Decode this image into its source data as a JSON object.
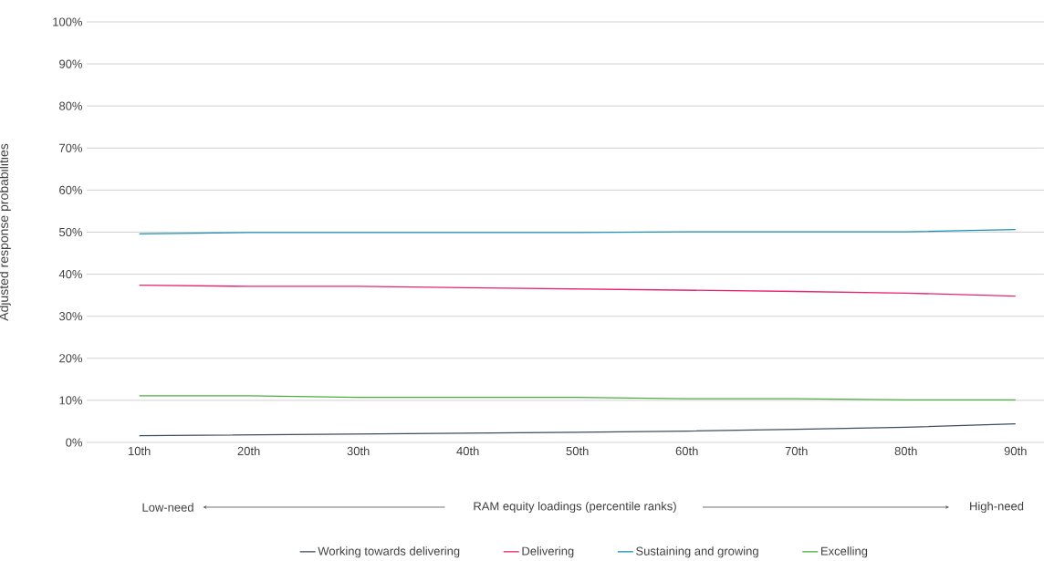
{
  "chart_data": {
    "type": "line",
    "xlabel": "RAM equity loadings (percentile ranks)",
    "ylabel": "Adjusted response probabilities",
    "categories": [
      "10th",
      "20th",
      "30th",
      "40th",
      "50th",
      "60th",
      "70th",
      "80th",
      "90th"
    ],
    "series": [
      {
        "name": "Working towards delivering",
        "color": "#3d4f63",
        "values": [
          1.6,
          1.8,
          2.0,
          2.2,
          2.4,
          2.7,
          3.1,
          3.6,
          4.4
        ]
      },
      {
        "name": "Delivering",
        "color": "#e6246e",
        "values": [
          37.4,
          37.1,
          37.1,
          36.8,
          36.5,
          36.2,
          35.9,
          35.5,
          34.8
        ]
      },
      {
        "name": "Sustaining and growing",
        "color": "#1a8fb5",
        "values": [
          49.6,
          49.9,
          49.9,
          49.9,
          49.9,
          50.1,
          50.1,
          50.1,
          50.6
        ]
      },
      {
        "name": "Excelling",
        "color": "#4caf3f",
        "values": [
          11.1,
          11.1,
          10.7,
          10.7,
          10.7,
          10.4,
          10.4,
          10.1,
          10.1
        ]
      }
    ],
    "ylim": [
      0,
      100
    ],
    "yticks": [
      {
        "value": 0,
        "label": "0%"
      },
      {
        "value": 10,
        "label": "10%"
      },
      {
        "value": 20,
        "label": "20%"
      },
      {
        "value": 30,
        "label": "30%"
      },
      {
        "value": 40,
        "label": "40%"
      },
      {
        "value": 50,
        "label": "50%"
      },
      {
        "value": 60,
        "label": "60%"
      },
      {
        "value": 70,
        "label": "70%"
      },
      {
        "value": 80,
        "label": "80%"
      },
      {
        "value": 90,
        "label": "90%"
      },
      {
        "value": 100,
        "label": "100%"
      }
    ],
    "grid": "y",
    "legend": "bottom",
    "marker": "none",
    "line_style": "solid",
    "annotations": [
      "Low-need",
      "High-need"
    ]
  }
}
